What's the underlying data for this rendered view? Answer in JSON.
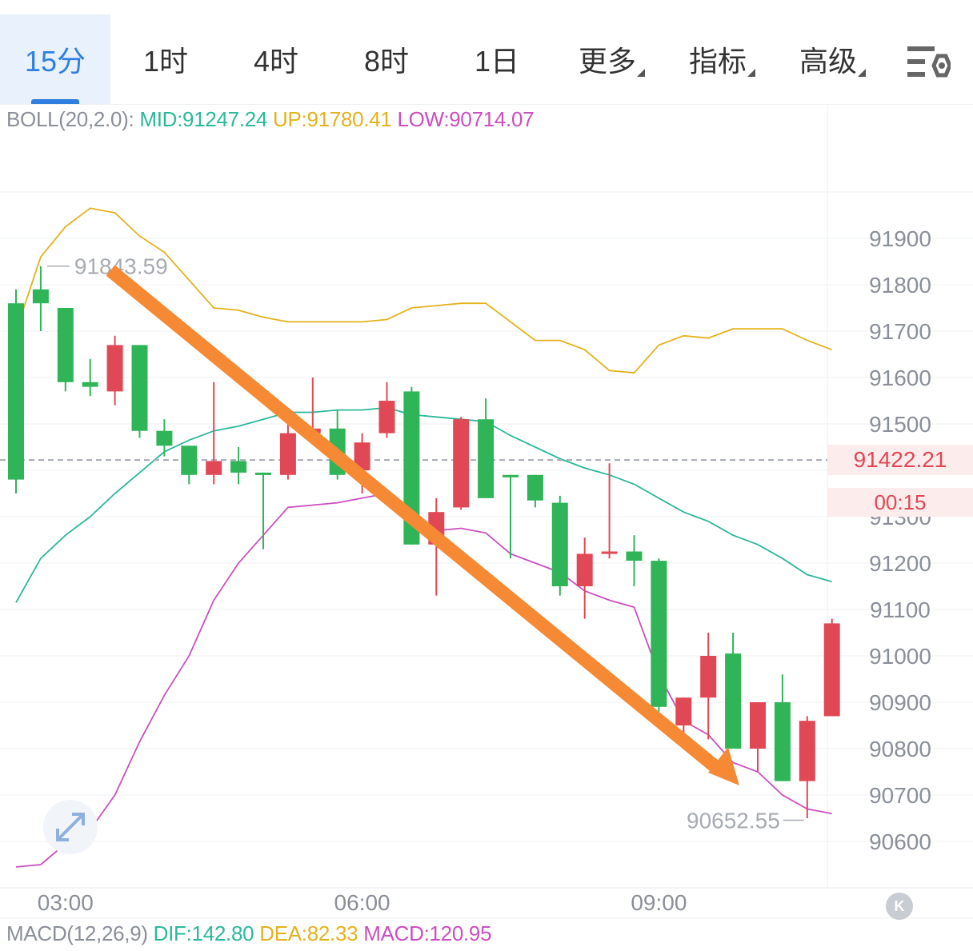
{
  "tabs": [
    {
      "label": "15分",
      "active": true
    },
    {
      "label": "1时"
    },
    {
      "label": "4时"
    },
    {
      "label": "8时"
    },
    {
      "label": "1日"
    },
    {
      "label": "更多",
      "dropdown": true
    },
    {
      "label": "指标",
      "dropdown": true
    },
    {
      "label": "高级",
      "dropdown": true
    }
  ],
  "settings_icon": "chart-settings-icon",
  "boll": {
    "label": "BOLL(20,2.0):",
    "mid": "MID:91247.24",
    "up": "UP:91780.41",
    "low": "LOW:90714.07",
    "colors": {
      "mid": "#2bb99a",
      "up": "#e3b21c",
      "low": "#cc4fbf"
    }
  },
  "macd": {
    "label": "MACD(12,26,9)",
    "dif": "DIF:142.80",
    "dea": "DEA:82.33",
    "macd": "MACD:120.95",
    "colors": {
      "dif": "#2bb99a",
      "dea": "#e3b21c",
      "macd": "#cc4fbf"
    }
  },
  "current_price": "91422.21",
  "countdown": "00:15",
  "k_button": "K",
  "chart_data": {
    "type": "candlestick",
    "y_ticks": [
      91900,
      91800,
      91700,
      91600,
      91500,
      91300,
      91200,
      91100,
      91000,
      90900,
      90800,
      90700,
      90600
    ],
    "x_ticks": [
      {
        "x": 2,
        "label": "03:00"
      },
      {
        "x": 14,
        "label": "06:00"
      },
      {
        "x": 26,
        "label": "09:00"
      }
    ],
    "high_marker": {
      "label": "91843.59",
      "value": 91843.59,
      "x": 1
    },
    "low_marker": {
      "label": "90652.55",
      "value": 90652.55,
      "x": 32
    },
    "current_price_value": 91422.21,
    "colors": {
      "up": "#e04855",
      "down": "#2fb558",
      "arrow": "#f68a34",
      "grid": "#eef0f3"
    },
    "candles": [
      [
        91760,
        91380,
        91790,
        91350
      ],
      [
        91790,
        91760,
        91840,
        91700
      ],
      [
        91750,
        91590,
        91750,
        91570
      ],
      [
        91590,
        91580,
        91640,
        91560
      ],
      [
        91570,
        91670,
        91690,
        91540
      ],
      [
        91670,
        91485,
        91670,
        91470
      ],
      [
        91485,
        91453,
        91510,
        91430
      ],
      [
        91453,
        91390,
        91453,
        91370
      ],
      [
        91390,
        91420,
        91590,
        91370
      ],
      [
        91420,
        91395,
        91450,
        91370
      ],
      [
        91395,
        91390,
        91395,
        91230
      ],
      [
        91390,
        91480,
        91500,
        91380
      ],
      [
        91480,
        91490,
        91600,
        91470
      ],
      [
        91490,
        91390,
        91530,
        91380
      ],
      [
        91400,
        91460,
        91480,
        91350
      ],
      [
        91480,
        91550,
        91590,
        91470
      ],
      [
        91570,
        91240,
        91580,
        91240
      ],
      [
        91240,
        91310,
        91340,
        91130
      ],
      [
        91320,
        91510,
        91515,
        91315
      ],
      [
        91510,
        91340,
        91555,
        91340
      ],
      [
        91390,
        91385,
        91390,
        91210
      ],
      [
        91390,
        91335,
        91390,
        91320
      ],
      [
        91330,
        91150,
        91345,
        91130
      ],
      [
        91150,
        91220,
        91255,
        91080
      ],
      [
        91225,
        91225,
        91415,
        91210
      ],
      [
        91225,
        91205,
        91260,
        91150
      ],
      [
        91205,
        90890,
        91210,
        90880
      ],
      [
        90850,
        90910,
        90910,
        90830
      ],
      [
        90910,
        91000,
        91050,
        90820
      ],
      [
        91005,
        90800,
        91050,
        90800
      ],
      [
        90800,
        90900,
        90900,
        90750
      ],
      [
        90900,
        90730,
        90960,
        90730
      ],
      [
        90730,
        90860,
        90870,
        90650
      ],
      [
        90870,
        91070,
        91080,
        90870
      ]
    ],
    "boll_up": [
      91700,
      91860,
      91925,
      91965,
      91955,
      91905,
      91870,
      91810,
      91750,
      91745,
      91730,
      91720,
      91720,
      91720,
      91720,
      91725,
      91750,
      91755,
      91760,
      91760,
      91720,
      91680,
      91680,
      91660,
      91615,
      91610,
      91670,
      91690,
      91685,
      91705,
      91705,
      91705,
      91680,
      91660
    ],
    "boll_mid": [
      91115,
      91210,
      91260,
      91300,
      91350,
      91395,
      91440,
      91465,
      91485,
      91495,
      91510,
      91525,
      91525,
      91530,
      91530,
      91535,
      91520,
      91515,
      91510,
      91505,
      91475,
      91450,
      91425,
      91405,
      91390,
      91370,
      91340,
      91310,
      91290,
      91260,
      91240,
      91210,
      91175,
      91160
    ],
    "boll_low": [
      90545,
      90550,
      90595,
      90625,
      90700,
      90815,
      90915,
      91000,
      91120,
      91200,
      91260,
      91320,
      91325,
      91330,
      91340,
      91350,
      91300,
      91270,
      91275,
      91265,
      91220,
      91200,
      91180,
      91140,
      91120,
      91105,
      90960,
      90860,
      90830,
      90770,
      90750,
      90700,
      90670,
      90660
    ]
  }
}
